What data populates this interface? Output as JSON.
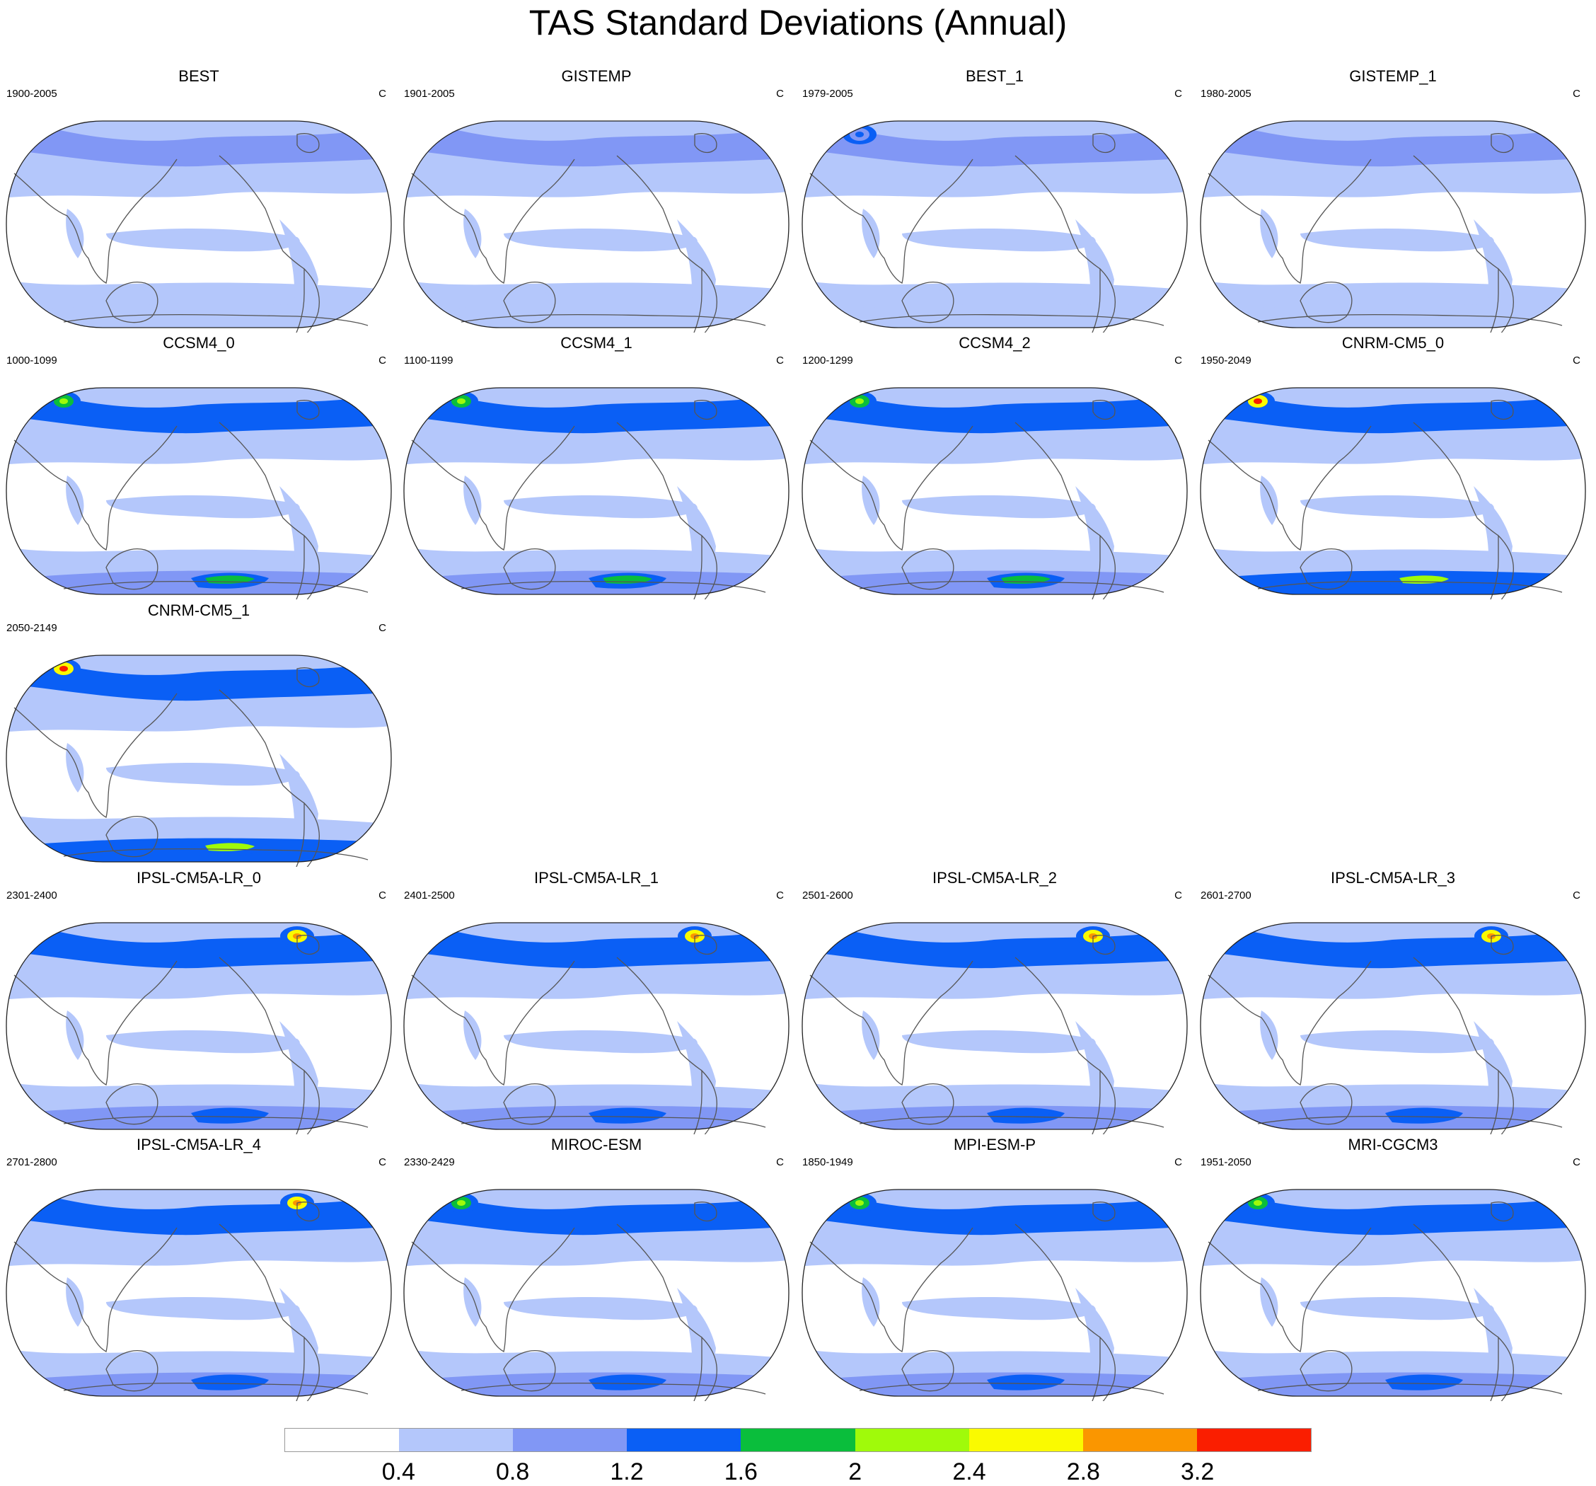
{
  "title": "TAS Standard Deviations (Annual)",
  "projection": "Robinson (Pacific-centered)",
  "panels": [
    {
      "name": "BEST",
      "period": "1900-2005",
      "unit": "C"
    },
    {
      "name": "GISTEMP",
      "period": "1901-2005",
      "unit": "C"
    },
    {
      "name": "BEST_1",
      "period": "1979-2005",
      "unit": "C"
    },
    {
      "name": "GISTEMP_1",
      "period": "1980-2005",
      "unit": "C"
    },
    {
      "name": "CCSM4_0",
      "period": "1000-1099",
      "unit": "C"
    },
    {
      "name": "CCSM4_1",
      "period": "1100-1199",
      "unit": "C"
    },
    {
      "name": "CCSM4_2",
      "period": "1200-1299",
      "unit": "C"
    },
    {
      "name": "CNRM-CM5_0",
      "period": "1950-2049",
      "unit": "C"
    },
    {
      "name": "CNRM-CM5_1",
      "period": "2050-2149",
      "unit": "C"
    },
    {
      "name": "IPSL-CM5A-LR_0",
      "period": "2301-2400",
      "unit": "C"
    },
    {
      "name": "IPSL-CM5A-LR_1",
      "period": "2401-2500",
      "unit": "C"
    },
    {
      "name": "IPSL-CM5A-LR_2",
      "period": "2501-2600",
      "unit": "C"
    },
    {
      "name": "IPSL-CM5A-LR_3",
      "period": "2601-2700",
      "unit": "C"
    },
    {
      "name": "IPSL-CM5A-LR_4",
      "period": "2701-2800",
      "unit": "C"
    },
    {
      "name": "MIROC-ESM",
      "period": "2330-2429",
      "unit": "C"
    },
    {
      "name": "MPI-ESM-P",
      "period": "1850-1949",
      "unit": "C"
    },
    {
      "name": "MRI-CGCM3",
      "period": "1951-2050",
      "unit": "C"
    }
  ],
  "legend": {
    "levels": [
      "0.4",
      "0.8",
      "1.2",
      "1.6",
      "2",
      "2.4",
      "2.8",
      "3.2"
    ],
    "colors": [
      "#ffffff",
      "#b4c7fb",
      "#8197f5",
      "#0a5ff5",
      "#0abe3c",
      "#a0fa0a",
      "#fafa00",
      "#fa9600",
      "#fa1e00"
    ]
  }
}
